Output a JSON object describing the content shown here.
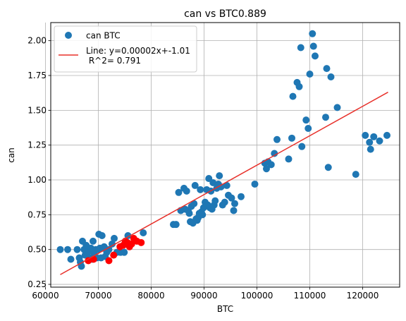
{
  "chart_data": {
    "type": "scatter",
    "title": "can vs BTC0.889",
    "xlabel": "BTC",
    "ylabel": "can",
    "xlim": [
      61000,
      127000
    ],
    "ylim": [
      0.23,
      2.13
    ],
    "xticks": [
      60000,
      70000,
      80000,
      90000,
      100000,
      110000,
      120000
    ],
    "xtick_labels": [
      "60000",
      "70000",
      "80000",
      "90000",
      "100000",
      "110000",
      "120000"
    ],
    "yticks": [
      0.25,
      0.5,
      0.75,
      1.0,
      1.25,
      1.5,
      1.75,
      2.0
    ],
    "ytick_labels": [
      "0.25",
      "0.50",
      "0.75",
      "1.00",
      "1.25",
      "1.50",
      "1.75",
      "2.00"
    ],
    "grid": true,
    "legend_position": "top-left",
    "series": [
      {
        "name": "can BTC",
        "type": "scatter",
        "color": "#1f77b4",
        "points": [
          [
            62800,
            0.5
          ],
          [
            64200,
            0.5
          ],
          [
            64800,
            0.43
          ],
          [
            66000,
            0.5
          ],
          [
            66400,
            0.44
          ],
          [
            66600,
            0.41
          ],
          [
            66800,
            0.38
          ],
          [
            67000,
            0.56
          ],
          [
            67300,
            0.5
          ],
          [
            67500,
            0.46
          ],
          [
            67700,
            0.53
          ],
          [
            67900,
            0.46
          ],
          [
            68200,
            0.49
          ],
          [
            68400,
            0.44
          ],
          [
            68600,
            0.51
          ],
          [
            68800,
            0.43
          ],
          [
            69000,
            0.56
          ],
          [
            69200,
            0.47
          ],
          [
            69500,
            0.5
          ],
          [
            69700,
            0.44
          ],
          [
            69900,
            0.5
          ],
          [
            70100,
            0.61
          ],
          [
            70300,
            0.51
          ],
          [
            70500,
            0.44
          ],
          [
            70700,
            0.6
          ],
          [
            70900,
            0.51
          ],
          [
            71100,
            0.52
          ],
          [
            71300,
            0.45
          ],
          [
            71600,
            0.48
          ],
          [
            72000,
            0.5
          ],
          [
            72600,
            0.54
          ],
          [
            73000,
            0.58
          ],
          [
            73500,
            0.48
          ],
          [
            74200,
            0.48
          ],
          [
            74900,
            0.48
          ],
          [
            75600,
            0.6
          ],
          [
            78500,
            0.62
          ],
          [
            84200,
            0.68
          ],
          [
            84700,
            0.68
          ],
          [
            85200,
            0.91
          ],
          [
            85600,
            0.78
          ],
          [
            86200,
            0.94
          ],
          [
            86400,
            0.79
          ],
          [
            86700,
            0.92
          ],
          [
            87000,
            0.78
          ],
          [
            87200,
            0.76
          ],
          [
            87400,
            0.7
          ],
          [
            87600,
            0.81
          ],
          [
            87900,
            0.69
          ],
          [
            88100,
            0.83
          ],
          [
            88300,
            0.96
          ],
          [
            88500,
            0.72
          ],
          [
            88700,
            0.71
          ],
          [
            88900,
            0.73
          ],
          [
            89100,
            0.76
          ],
          [
            89300,
            0.93
          ],
          [
            89500,
            0.77
          ],
          [
            89700,
            0.75
          ],
          [
            89900,
            0.8
          ],
          [
            90200,
            0.84
          ],
          [
            90500,
            0.93
          ],
          [
            90700,
            0.82
          ],
          [
            90900,
            1.01
          ],
          [
            91100,
            0.8
          ],
          [
            91300,
            0.92
          ],
          [
            91500,
            0.79
          ],
          [
            91700,
            0.98
          ],
          [
            91900,
            0.82
          ],
          [
            92100,
            0.85
          ],
          [
            92400,
            0.94
          ],
          [
            92700,
            0.97
          ],
          [
            92900,
            1.03
          ],
          [
            93200,
            0.95
          ],
          [
            93500,
            0.82
          ],
          [
            93900,
            0.84
          ],
          [
            94300,
            0.96
          ],
          [
            94600,
            0.89
          ],
          [
            95200,
            0.87
          ],
          [
            95600,
            0.78
          ],
          [
            95800,
            0.83
          ],
          [
            97000,
            0.88
          ],
          [
            99600,
            0.97
          ],
          [
            101500,
            1.12
          ],
          [
            101800,
            1.08
          ],
          [
            102100,
            1.13
          ],
          [
            102700,
            1.11
          ],
          [
            103300,
            1.19
          ],
          [
            103800,
            1.29
          ],
          [
            106000,
            1.15
          ],
          [
            106600,
            1.3
          ],
          [
            106800,
            1.6
          ],
          [
            107600,
            1.7
          ],
          [
            108000,
            1.67
          ],
          [
            108300,
            1.95
          ],
          [
            108500,
            1.24
          ],
          [
            109300,
            1.43
          ],
          [
            109700,
            1.37
          ],
          [
            110000,
            1.76
          ],
          [
            110500,
            2.05
          ],
          [
            110700,
            1.96
          ],
          [
            111000,
            1.89
          ],
          [
            113000,
            1.45
          ],
          [
            113200,
            1.8
          ],
          [
            113500,
            1.09
          ],
          [
            114000,
            1.74
          ],
          [
            115200,
            1.52
          ],
          [
            118700,
            1.04
          ],
          [
            120500,
            1.32
          ],
          [
            121300,
            1.27
          ],
          [
            121500,
            1.22
          ],
          [
            122100,
            1.31
          ],
          [
            123200,
            1.28
          ],
          [
            124600,
            1.32
          ]
        ]
      },
      {
        "name": "",
        "type": "scatter",
        "color": "#ff0000",
        "points": [
          [
            68100,
            0.42
          ],
          [
            69100,
            0.43
          ],
          [
            72000,
            0.42
          ],
          [
            72900,
            0.46
          ],
          [
            74100,
            0.52
          ],
          [
            74700,
            0.53
          ],
          [
            75100,
            0.56
          ],
          [
            75500,
            0.55
          ],
          [
            75900,
            0.52
          ],
          [
            76300,
            0.54
          ],
          [
            76700,
            0.58
          ],
          [
            77300,
            0.56
          ],
          [
            78100,
            0.55
          ]
        ]
      },
      {
        "name": "Line: y=0.00002x+-1.01\n R^2= 0.791",
        "type": "line",
        "color": "#e8302a",
        "points": [
          [
            62800,
            0.32
          ],
          [
            124800,
            1.63
          ]
        ]
      }
    ]
  }
}
